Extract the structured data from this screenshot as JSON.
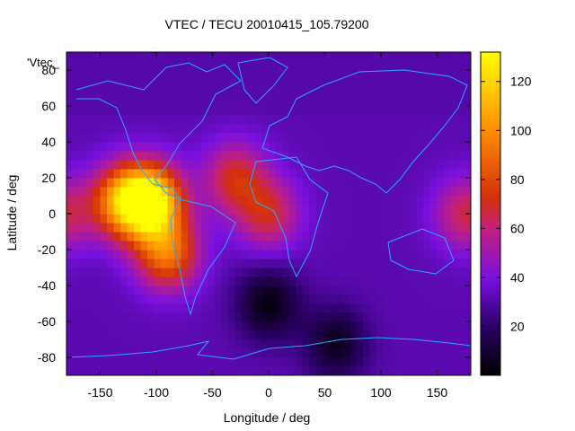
{
  "figure": {
    "title": "VTEC / TECU 20010415_105.79200",
    "xlabel": "Longitude / deg",
    "ylabel": "Latitude / deg",
    "legend_key": "'Vtec_"
  },
  "axes": {
    "x_ticks": [
      {
        "value": -150,
        "label": "-150"
      },
      {
        "value": -100,
        "label": "-100"
      },
      {
        "value": -50,
        "label": "-50"
      },
      {
        "value": 0,
        "label": "0"
      },
      {
        "value": 50,
        "label": "50"
      },
      {
        "value": 100,
        "label": "100"
      },
      {
        "value": 150,
        "label": "150"
      }
    ],
    "y_ticks": [
      {
        "value": -80,
        "label": "-80"
      },
      {
        "value": -60,
        "label": "-60"
      },
      {
        "value": -40,
        "label": "-40"
      },
      {
        "value": -20,
        "label": "-20"
      },
      {
        "value": 0,
        "label": "0"
      },
      {
        "value": 20,
        "label": "20"
      },
      {
        "value": 40,
        "label": "40"
      },
      {
        "value": 60,
        "label": "60"
      },
      {
        "value": 80,
        "label": "80"
      }
    ],
    "xlim": [
      -180,
      180
    ],
    "ylim": [
      -90,
      90
    ]
  },
  "colorbar": {
    "min": 0,
    "max": 132,
    "ticks": [
      {
        "value": 20,
        "label": "20"
      },
      {
        "value": 40,
        "label": "40"
      },
      {
        "value": 60,
        "label": "60"
      },
      {
        "value": 80,
        "label": "80"
      },
      {
        "value": 100,
        "label": "100"
      },
      {
        "value": 120,
        "label": "120"
      }
    ]
  },
  "chart_data": {
    "type": "heatmap",
    "title": "VTEC / TECU 20010415_105.79200",
    "xlabel": "Longitude / deg",
    "ylabel": "Latitude / deg",
    "xlim": [
      -180,
      180
    ],
    "ylim": [
      -90,
      90
    ],
    "value_range": [
      0,
      132
    ],
    "colormap": "gnuplot hot (black-purple-orange-yellow)",
    "coastline_color": "#2aa8ff",
    "features": [
      {
        "lon": -105,
        "lat": 7,
        "vtec": 130
      },
      {
        "lon": -130,
        "lat": 7,
        "vtec": 95
      },
      {
        "lon": -90,
        "lat": -22,
        "vtec": 90
      },
      {
        "lon": -30,
        "lat": 20,
        "vtec": 70
      },
      {
        "lon": 0,
        "lat": 0,
        "vtec": 68
      },
      {
        "lon": 175,
        "lat": 0,
        "vtec": 65
      },
      {
        "lon": 0,
        "lat": -50,
        "vtec": 3
      },
      {
        "lon": 60,
        "lat": -72,
        "vtec": 6
      }
    ]
  }
}
